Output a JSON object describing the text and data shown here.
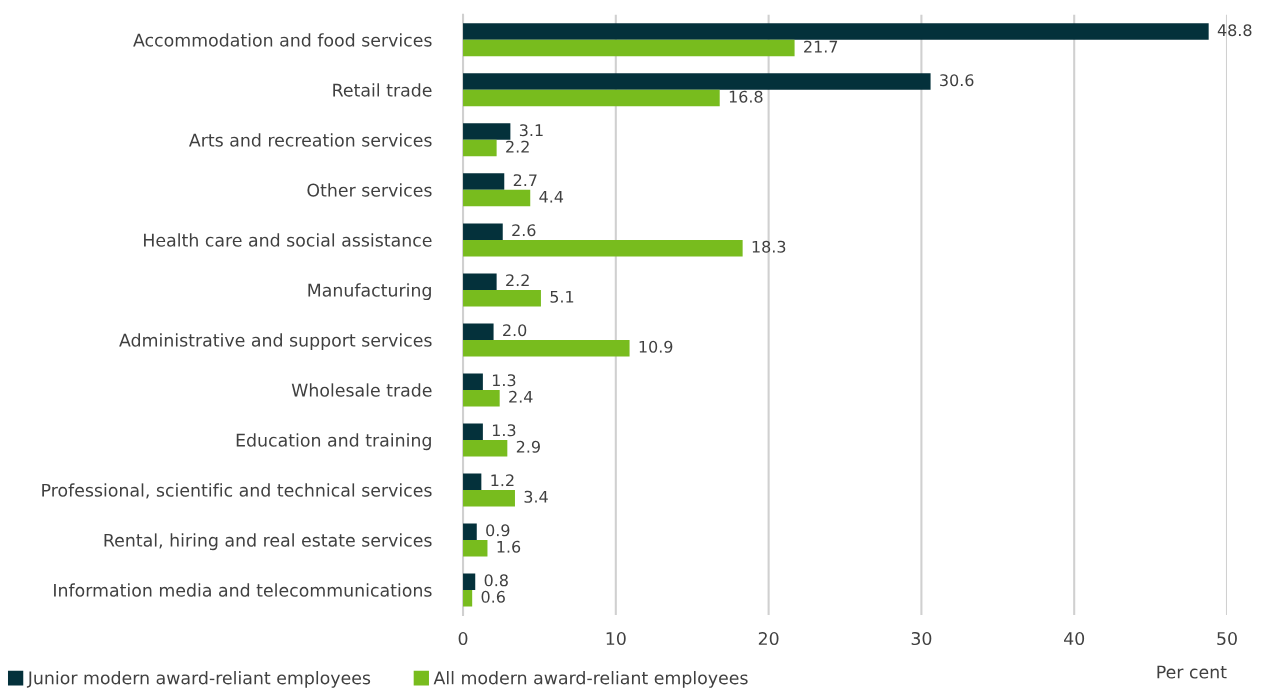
{
  "chart_data": {
    "type": "bar",
    "orientation": "horizontal",
    "xlabel": "Per cent",
    "categories": [
      "Accommodation and food services",
      "Retail trade",
      "Arts and recreation services",
      "Other services",
      "Health care and social assistance",
      "Manufacturing",
      "Administrative and support services",
      "Wholesale trade",
      "Education and training",
      "Professional, scientific and technical services",
      "Rental, hiring and real estate services",
      "Information media and telecommunications"
    ],
    "series": [
      {
        "name": "Junior modern award-reliant employees",
        "color": "#04313b",
        "values": [
          48.8,
          30.6,
          3.1,
          2.7,
          2.6,
          2.2,
          2.0,
          1.3,
          1.3,
          1.2,
          0.9,
          0.8
        ],
        "value_labels": [
          "48.8",
          "30.6",
          "3.1",
          "2.7",
          "2.6",
          "2.2",
          "2.0",
          "1.3",
          "1.3",
          "1.2",
          "0.9",
          "0.8"
        ]
      },
      {
        "name": "All modern award-reliant employees",
        "color": "#78bc1e",
        "values": [
          21.7,
          16.8,
          2.2,
          4.4,
          18.3,
          5.1,
          10.9,
          2.4,
          2.9,
          3.4,
          1.6,
          0.6
        ],
        "value_labels": [
          "21.7",
          "16.8",
          "2.2",
          "4.4",
          "18.3",
          "5.1",
          "10.9",
          "2.4",
          "2.9",
          "3.4",
          "1.6",
          "0.6"
        ]
      }
    ],
    "xlim": [
      0,
      50
    ],
    "xticks": [
      0,
      10,
      20,
      30,
      40,
      50
    ],
    "grid": "x",
    "legend": "bottom left"
  }
}
